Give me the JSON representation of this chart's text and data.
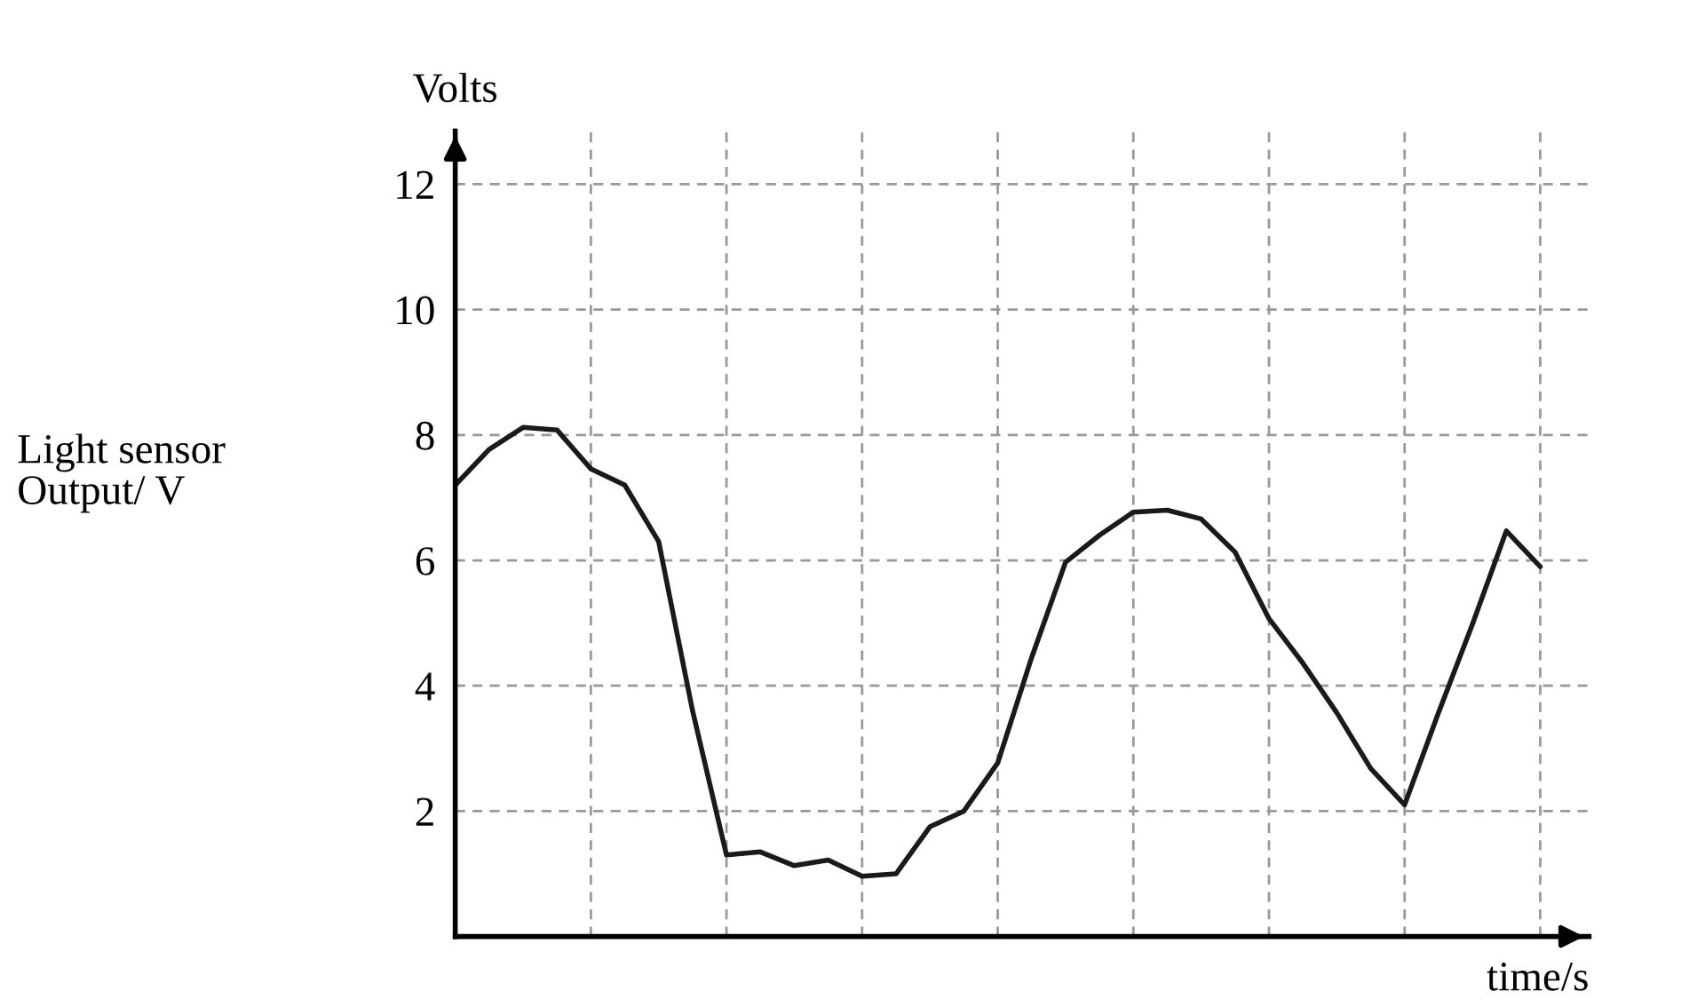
{
  "chart_data": {
    "type": "line",
    "xlabel": "time/s",
    "ylabel": "Light sensor\nOutput/ V",
    "annotations": [
      "Volts"
    ],
    "categories": [
      null,
      null,
      null,
      null,
      null,
      null,
      null,
      null,
      null,
      null,
      null,
      null,
      null,
      null,
      null,
      null,
      null,
      null,
      null,
      null,
      null,
      null,
      null,
      null,
      null,
      null,
      null,
      null,
      null,
      null,
      null,
      null,
      null
    ],
    "series": [
      {
        "color": "#1a1a1a",
        "values": [
          7.2,
          7.77,
          8.12,
          8.08,
          7.46,
          7.2,
          6.3,
          3.6,
          1.3,
          1.35,
          1.13,
          1.22,
          0.96,
          1.0,
          1.75,
          2.0,
          2.77,
          4.45,
          5.97,
          6.4,
          6.77,
          6.8,
          6.66,
          6.13,
          5.07,
          4.36,
          3.57,
          2.68,
          2.1,
          3.57,
          4.98,
          6.47,
          5.9
        ]
      }
    ],
    "ylim": [
      0,
      12.85
    ],
    "yticks": [
      2,
      4,
      6,
      8,
      10,
      12
    ],
    "grid": true,
    "tick_labels": "y",
    "marker": "none",
    "line_style": "solid"
  }
}
